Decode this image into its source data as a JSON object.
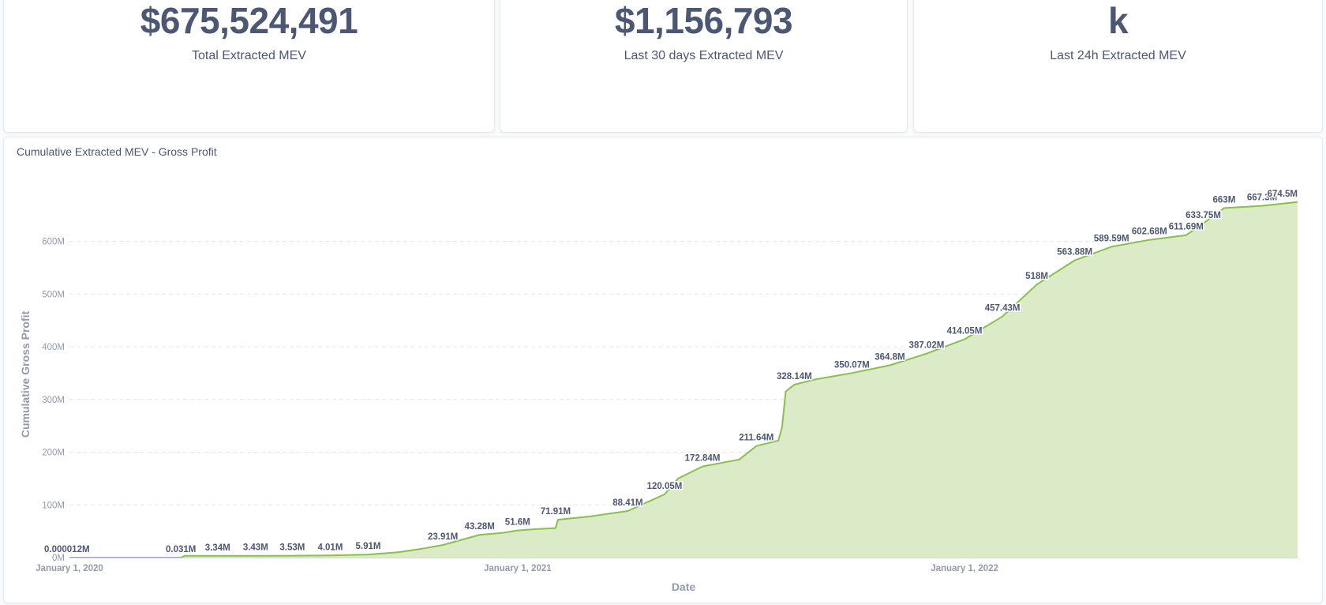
{
  "stats": [
    {
      "value": "$675,524,491",
      "label": "Total Extracted MEV"
    },
    {
      "value": "$1,156,793",
      "label": "Last 30 days Extracted MEV"
    },
    {
      "value": "k",
      "label": "Last 24h Extracted MEV"
    }
  ],
  "chart_data": {
    "type": "area",
    "title": "Cumulative Extracted MEV - Gross Profit",
    "xlabel": "Date",
    "ylabel": "Cumulative Gross Profit",
    "ylim": [
      0,
      680
    ],
    "y_ticks": [
      0,
      100,
      200,
      300,
      400,
      500,
      600
    ],
    "y_tick_labels": [
      "0M",
      "100M",
      "200M",
      "300M",
      "400M",
      "500M",
      "600M"
    ],
    "x_range": [
      "2020-01-01",
      "2022-09-30"
    ],
    "x_ticks": [
      {
        "date": "2020-01-01",
        "label": "January 1, 2020"
      },
      {
        "date": "2021-01-01",
        "label": "January 1, 2021"
      },
      {
        "date": "2022-01-01",
        "label": "January 1, 2022"
      }
    ],
    "grid": true,
    "line_color": "#88bf4d",
    "fill_color": "#dbebc7",
    "points": [
      {
        "date": "2020-01-01",
        "value": 1.2e-05
      },
      {
        "date": "2020-02-15",
        "value": 0.01
      },
      {
        "date": "2020-04-01",
        "value": 0.031
      },
      {
        "date": "2020-04-04",
        "value": 3.34
      },
      {
        "date": "2020-05-15",
        "value": 3.38
      },
      {
        "date": "2020-06-01",
        "value": 3.43
      },
      {
        "date": "2020-07-01",
        "value": 3.53
      },
      {
        "date": "2020-08-01",
        "value": 4.01
      },
      {
        "date": "2020-09-01",
        "value": 5.91
      },
      {
        "date": "2020-09-25",
        "value": 10
      },
      {
        "date": "2020-10-15",
        "value": 17
      },
      {
        "date": "2020-11-01",
        "value": 23.91
      },
      {
        "date": "2020-11-15",
        "value": 33
      },
      {
        "date": "2020-12-01",
        "value": 43.28
      },
      {
        "date": "2020-12-20",
        "value": 47
      },
      {
        "date": "2021-01-01",
        "value": 51.6
      },
      {
        "date": "2021-01-15",
        "value": 54
      },
      {
        "date": "2021-02-01",
        "value": 56
      },
      {
        "date": "2021-02-03",
        "value": 71.91
      },
      {
        "date": "2021-03-01",
        "value": 78
      },
      {
        "date": "2021-04-01",
        "value": 88.41
      },
      {
        "date": "2021-05-01",
        "value": 120.05
      },
      {
        "date": "2021-05-12",
        "value": 150
      },
      {
        "date": "2021-06-01",
        "value": 172.84
      },
      {
        "date": "2021-07-01",
        "value": 186
      },
      {
        "date": "2021-07-15",
        "value": 211.64
      },
      {
        "date": "2021-08-02",
        "value": 222
      },
      {
        "date": "2021-08-05",
        "value": 248
      },
      {
        "date": "2021-08-08",
        "value": 315
      },
      {
        "date": "2021-08-15",
        "value": 328.14
      },
      {
        "date": "2021-09-01",
        "value": 338
      },
      {
        "date": "2021-10-01",
        "value": 350.07
      },
      {
        "date": "2021-11-01",
        "value": 364.8
      },
      {
        "date": "2021-12-01",
        "value": 387.02
      },
      {
        "date": "2022-01-01",
        "value": 414.05
      },
      {
        "date": "2022-02-01",
        "value": 457.43
      },
      {
        "date": "2022-03-01",
        "value": 518
      },
      {
        "date": "2022-04-01",
        "value": 563.88
      },
      {
        "date": "2022-05-01",
        "value": 589.59
      },
      {
        "date": "2022-06-01",
        "value": 602.68
      },
      {
        "date": "2022-07-01",
        "value": 611.69
      },
      {
        "date": "2022-07-15",
        "value": 633.75
      },
      {
        "date": "2022-08-01",
        "value": 663
      },
      {
        "date": "2022-09-01",
        "value": 667.3
      },
      {
        "date": "2022-09-30",
        "value": 674.5
      }
    ],
    "data_labels": [
      {
        "date": "2020-01-01",
        "value": 1.2e-05,
        "text": "0.000012M"
      },
      {
        "date": "2020-04-01",
        "value": 0.031,
        "text": "0.031M"
      },
      {
        "date": "2020-05-01",
        "value": 3.34,
        "text": "3.34M"
      },
      {
        "date": "2020-06-01",
        "value": 3.43,
        "text": "3.43M"
      },
      {
        "date": "2020-07-01",
        "value": 3.53,
        "text": "3.53M"
      },
      {
        "date": "2020-08-01",
        "value": 4.01,
        "text": "4.01M"
      },
      {
        "date": "2020-09-01",
        "value": 5.91,
        "text": "5.91M"
      },
      {
        "date": "2020-11-01",
        "value": 23.91,
        "text": "23.91M"
      },
      {
        "date": "2020-12-01",
        "value": 43.28,
        "text": "43.28M"
      },
      {
        "date": "2021-01-01",
        "value": 51.6,
        "text": "51.6M"
      },
      {
        "date": "2021-02-01",
        "value": 71.91,
        "text": "71.91M"
      },
      {
        "date": "2021-04-01",
        "value": 88.41,
        "text": "88.41M"
      },
      {
        "date": "2021-05-01",
        "value": 120.05,
        "text": "120.05M"
      },
      {
        "date": "2021-06-01",
        "value": 172.84,
        "text": "172.84M"
      },
      {
        "date": "2021-07-15",
        "value": 211.64,
        "text": "211.64M"
      },
      {
        "date": "2021-08-15",
        "value": 328.14,
        "text": "328.14M"
      },
      {
        "date": "2021-10-01",
        "value": 350.07,
        "text": "350.07M"
      },
      {
        "date": "2021-11-01",
        "value": 364.8,
        "text": "364.8M"
      },
      {
        "date": "2021-12-01",
        "value": 387.02,
        "text": "387.02M"
      },
      {
        "date": "2022-01-01",
        "value": 414.05,
        "text": "414.05M"
      },
      {
        "date": "2022-02-01",
        "value": 457.43,
        "text": "457.43M"
      },
      {
        "date": "2022-03-01",
        "value": 518,
        "text": "518M"
      },
      {
        "date": "2022-04-01",
        "value": 563.88,
        "text": "563.88M"
      },
      {
        "date": "2022-05-01",
        "value": 589.59,
        "text": "589.59M"
      },
      {
        "date": "2022-06-01",
        "value": 602.68,
        "text": "602.68M"
      },
      {
        "date": "2022-07-01",
        "value": 611.69,
        "text": "611.69M"
      },
      {
        "date": "2022-07-15",
        "value": 633.75,
        "text": "633.75M"
      },
      {
        "date": "2022-08-01",
        "value": 663,
        "text": "663M"
      },
      {
        "date": "2022-09-01",
        "value": 667.3,
        "text": "667.3M"
      },
      {
        "date": "2022-09-30",
        "value": 674.5,
        "text": "674.5M"
      }
    ]
  }
}
